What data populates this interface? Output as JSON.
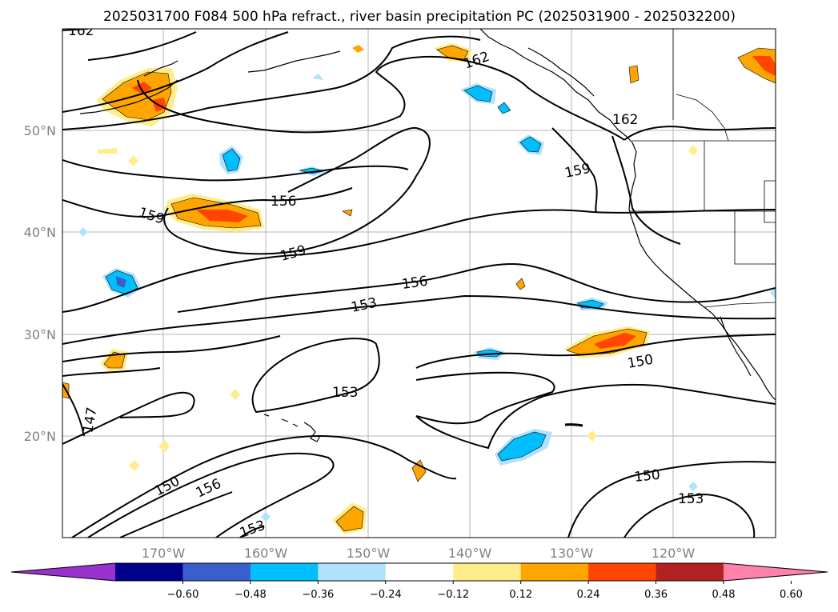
{
  "title": "2025031700 F084 500 hPa refract., river basin precipitation PC (2025031900 - 2025032200)",
  "map": {
    "lat_labels": [
      "50°N",
      "40°N",
      "30°N",
      "20°N"
    ],
    "lon_labels": [
      "170°W",
      "160°W",
      "150°W",
      "140°W",
      "130°W",
      "120°W"
    ],
    "contour_labels": [
      "162",
      "162",
      "162",
      "159",
      "159",
      "159",
      "156",
      "156",
      "156",
      "153",
      "153",
      "153",
      "153",
      "150",
      "150",
      "150",
      "147"
    ]
  },
  "colorbar": {
    "colors": [
      "#9932cc",
      "#00008b",
      "#3a5fcd",
      "#00bfff",
      "#b0e2ff",
      "#ffffff",
      "#ffec8b",
      "#ffa500",
      "#ff4500",
      "#b22222",
      "#ff82ab"
    ],
    "ticks": [
      "−0.60",
      "−0.48",
      "−0.36",
      "−0.24",
      "−0.12",
      "0.12",
      "0.24",
      "0.36",
      "0.48",
      "0.60"
    ]
  }
}
